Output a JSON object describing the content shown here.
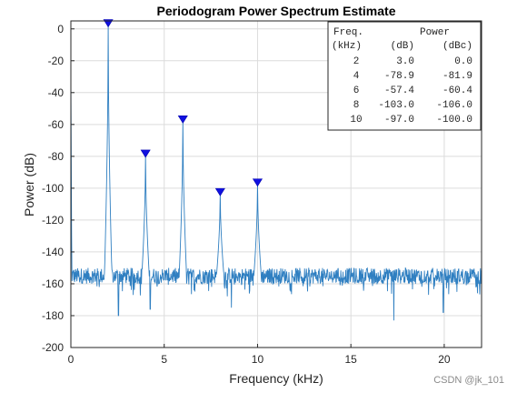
{
  "chart_data": {
    "type": "line",
    "title": "Periodogram Power Spectrum Estimate",
    "xlabel": "Frequency (kHz)",
    "ylabel": "Power (dB)",
    "xlim": [
      0,
      22
    ],
    "ylim": [
      -200,
      5
    ],
    "xticks": [
      0,
      5,
      10,
      15,
      20
    ],
    "yticks": [
      0,
      -20,
      -40,
      -60,
      -80,
      -100,
      -120,
      -140,
      -160,
      -180,
      -200
    ],
    "grid": true,
    "line_color": "#2f7fc1",
    "marker_color": "#1010e0",
    "noise_floor": -155,
    "peaks": [
      {
        "x": 2,
        "y": 3.0
      },
      {
        "x": 4,
        "y": -78.9
      },
      {
        "x": 6,
        "y": -57.4
      },
      {
        "x": 8,
        "y": -103.0
      },
      {
        "x": 10,
        "y": -97.0
      }
    ],
    "deep_dips": [
      {
        "x": 2.55,
        "y": -180
      },
      {
        "x": 4.25,
        "y": -176
      },
      {
        "x": 8.6,
        "y": -175
      },
      {
        "x": 17.3,
        "y": -183
      },
      {
        "x": 19.95,
        "y": -178
      }
    ],
    "start_value": -30,
    "table": {
      "header1": [
        "Freq.",
        "Power"
      ],
      "header2": [
        "(kHz)",
        "(dB)",
        "(dBc)"
      ],
      "rows": [
        [
          "2",
          "3.0",
          "0.0"
        ],
        [
          "4",
          "-78.9",
          "-81.9"
        ],
        [
          "6",
          "-57.4",
          "-60.4"
        ],
        [
          "8",
          "-103.0",
          "-106.0"
        ],
        [
          "10",
          "-97.0",
          "-100.0"
        ]
      ]
    }
  },
  "watermark": "CSDN @jk_101"
}
